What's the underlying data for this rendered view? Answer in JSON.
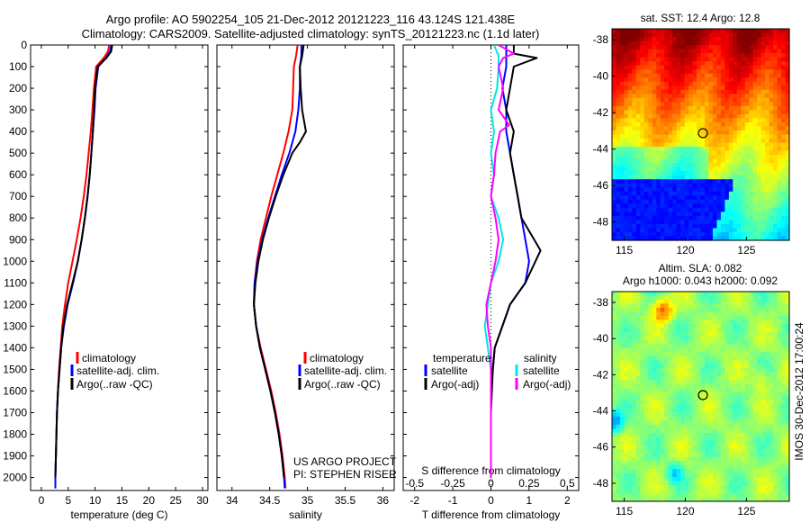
{
  "header": {
    "title_line1": "Argo profile: AO 5902254_105 21-Dec-2012 20121223_116 43.124S 121.438E",
    "title_line2": "Climatology: CARS2009. Satellite-adjusted climatology: synTS_20121223.nc (1.1d later)"
  },
  "colors": {
    "climatology": "#ff0000",
    "satellite": "#0000ff",
    "argo": "#000000",
    "satellite_s": "#00e5e5",
    "argo_s": "#ff00ff"
  },
  "credits": {
    "line1": "US ARGO PROJECT",
    "line2": "PI: STEPHEN RISER"
  },
  "timestamp": "IMOS 30-Dec-2012 17:00:24",
  "legend_profiles": [
    "climatology",
    "satellite-adj. clim.",
    "Argo(..raw -QC)"
  ],
  "legend_diff": {
    "temperature_heading": "temperature",
    "salinity_heading": "salinity",
    "satellite": "satellite",
    "argo": "Argo(-adj)"
  },
  "chart_data": [
    {
      "type": "line",
      "id": "temperature",
      "xlabel": "temperature (deg C)",
      "ylabel": "",
      "xlim": [
        -2,
        31
      ],
      "ylim": [
        2060,
        0
      ],
      "xticks": [
        0,
        5,
        10,
        15,
        20,
        25,
        30
      ],
      "yticks": [
        0,
        100,
        200,
        300,
        400,
        500,
        600,
        700,
        800,
        900,
        1000,
        1100,
        1200,
        1300,
        1400,
        1500,
        1600,
        1700,
        1800,
        1900,
        2000
      ],
      "series": [
        {
          "name": "climatology",
          "color": "#ff0000",
          "points": [
            [
              12.6,
              0
            ],
            [
              12.4,
              30
            ],
            [
              11.6,
              60
            ],
            [
              10.2,
              100
            ],
            [
              9.8,
              200
            ],
            [
              9.5,
              300
            ],
            [
              9.2,
              400
            ],
            [
              8.8,
              500
            ],
            [
              8.4,
              600
            ],
            [
              7.9,
              700
            ],
            [
              7.3,
              800
            ],
            [
              6.6,
              900
            ],
            [
              5.8,
              1000
            ],
            [
              5.0,
              1100
            ],
            [
              4.4,
              1200
            ],
            [
              3.9,
              1300
            ],
            [
              3.6,
              1400
            ],
            [
              3.3,
              1500
            ],
            [
              3.1,
              1600
            ],
            [
              2.9,
              1700
            ],
            [
              2.8,
              1800
            ],
            [
              2.7,
              1900
            ],
            [
              2.6,
              2000
            ],
            [
              2.6,
              2050
            ]
          ]
        },
        {
          "name": "satellite-adj. clim.",
          "color": "#0000ff",
          "points": [
            [
              13.0,
              0
            ],
            [
              12.8,
              30
            ],
            [
              12.0,
              60
            ],
            [
              10.6,
              100
            ],
            [
              10.1,
              200
            ],
            [
              9.9,
              300
            ],
            [
              9.6,
              400
            ],
            [
              9.3,
              500
            ],
            [
              9.0,
              600
            ],
            [
              8.6,
              700
            ],
            [
              8.1,
              800
            ],
            [
              7.5,
              900
            ],
            [
              6.8,
              1000
            ],
            [
              5.9,
              1100
            ],
            [
              4.9,
              1200
            ],
            [
              4.2,
              1300
            ],
            [
              3.7,
              1400
            ],
            [
              3.4,
              1500
            ],
            [
              3.1,
              1600
            ],
            [
              2.9,
              1700
            ],
            [
              2.8,
              1800
            ],
            [
              2.7,
              1900
            ],
            [
              2.6,
              2000
            ],
            [
              2.6,
              2050
            ]
          ]
        },
        {
          "name": "Argo(..raw -QC)",
          "color": "#000000",
          "points": [
            [
              13.2,
              0
            ],
            [
              13.0,
              30
            ],
            [
              12.1,
              60
            ],
            [
              10.5,
              100
            ],
            [
              10.0,
              200
            ],
            [
              9.8,
              300
            ],
            [
              9.6,
              400
            ],
            [
              9.3,
              500
            ],
            [
              9.0,
              600
            ],
            [
              8.6,
              700
            ],
            [
              8.1,
              800
            ],
            [
              7.5,
              900
            ],
            [
              6.8,
              1000
            ],
            [
              5.8,
              1100
            ],
            [
              4.8,
              1200
            ],
            [
              4.1,
              1300
            ],
            [
              3.7,
              1400
            ],
            [
              3.4,
              1500
            ],
            [
              3.1,
              1600
            ],
            [
              2.9,
              1700
            ],
            [
              2.8,
              1800
            ],
            [
              2.7,
              1900
            ],
            [
              2.6,
              2000
            ]
          ]
        }
      ]
    },
    {
      "type": "line",
      "id": "salinity",
      "xlabel": "salinity",
      "ylabel": "",
      "xlim": [
        33.8,
        36.15
      ],
      "ylim": [
        2060,
        0
      ],
      "xticks": [
        34,
        34.5,
        35,
        35.5,
        36
      ],
      "series": [
        {
          "name": "climatology",
          "color": "#ff0000",
          "points": [
            [
              34.87,
              0
            ],
            [
              34.85,
              50
            ],
            [
              34.82,
              100
            ],
            [
              34.81,
              200
            ],
            [
              34.8,
              300
            ],
            [
              34.75,
              400
            ],
            [
              34.68,
              500
            ],
            [
              34.6,
              600
            ],
            [
              34.52,
              700
            ],
            [
              34.45,
              800
            ],
            [
              34.38,
              900
            ],
            [
              34.33,
              1000
            ],
            [
              34.3,
              1100
            ],
            [
              34.29,
              1200
            ],
            [
              34.32,
              1300
            ],
            [
              34.38,
              1400
            ],
            [
              34.45,
              1500
            ],
            [
              34.52,
              1600
            ],
            [
              34.58,
              1700
            ],
            [
              34.63,
              1800
            ],
            [
              34.67,
              1900
            ],
            [
              34.7,
              2000
            ],
            [
              34.71,
              2050
            ]
          ]
        },
        {
          "name": "satellite-adj. clim.",
          "color": "#0000ff",
          "points": [
            [
              34.92,
              0
            ],
            [
              34.92,
              50
            ],
            [
              34.9,
              100
            ],
            [
              34.9,
              200
            ],
            [
              34.88,
              300
            ],
            [
              34.84,
              400
            ],
            [
              34.76,
              500
            ],
            [
              34.66,
              600
            ],
            [
              34.57,
              700
            ],
            [
              34.48,
              800
            ],
            [
              34.4,
              900
            ],
            [
              34.34,
              1000
            ],
            [
              34.3,
              1100
            ],
            [
              34.29,
              1200
            ],
            [
              34.32,
              1300
            ],
            [
              34.37,
              1400
            ],
            [
              34.44,
              1500
            ],
            [
              34.51,
              1600
            ],
            [
              34.57,
              1700
            ],
            [
              34.62,
              1800
            ],
            [
              34.66,
              1900
            ],
            [
              34.69,
              2000
            ],
            [
              34.7,
              2050
            ]
          ]
        },
        {
          "name": "Argo(..raw -QC)",
          "color": "#000000",
          "points": [
            [
              34.95,
              0
            ],
            [
              34.93,
              50
            ],
            [
              34.9,
              100
            ],
            [
              34.91,
              200
            ],
            [
              34.93,
              300
            ],
            [
              34.98,
              400
            ],
            [
              34.9,
              450
            ],
            [
              34.8,
              500
            ],
            [
              34.68,
              600
            ],
            [
              34.58,
              700
            ],
            [
              34.49,
              800
            ],
            [
              34.41,
              900
            ],
            [
              34.35,
              1000
            ],
            [
              34.31,
              1100
            ],
            [
              34.29,
              1200
            ],
            [
              34.32,
              1300
            ],
            [
              34.37,
              1400
            ],
            [
              34.44,
              1500
            ],
            [
              34.51,
              1600
            ],
            [
              34.57,
              1700
            ],
            [
              34.62,
              1800
            ],
            [
              34.66,
              1900
            ],
            [
              34.69,
              2000
            ]
          ]
        }
      ]
    },
    {
      "type": "line",
      "id": "differences",
      "xlabel": "T difference from climatology",
      "xlabel_top": "S difference from climatology",
      "ylabel": "",
      "xlim": [
        -2.3,
        2.3
      ],
      "ylim": [
        2060,
        0
      ],
      "xticks": [
        -2,
        -1,
        0,
        1,
        2
      ],
      "xticklabels": [
        "-2",
        "-1",
        "0",
        "1",
        "2"
      ],
      "xticks_s": [
        -0.5,
        -0.25,
        0,
        0.25,
        0.5
      ],
      "xticklabels_s": [
        "-0.5",
        "-0.25",
        "0",
        "0.25",
        "0.5"
      ],
      "series": [
        {
          "name": "temperature satellite",
          "color": "#0000ff",
          "points": [
            [
              0.4,
              0
            ],
            [
              0.4,
              50
            ],
            [
              0.4,
              100
            ],
            [
              0.3,
              200
            ],
            [
              0.4,
              300
            ],
            [
              0.4,
              400
            ],
            [
              0.5,
              500
            ],
            [
              0.6,
              600
            ],
            [
              0.7,
              700
            ],
            [
              0.8,
              800
            ],
            [
              0.9,
              900
            ],
            [
              1.0,
              1000
            ],
            [
              0.9,
              1100
            ],
            [
              0.5,
              1200
            ],
            [
              0.3,
              1300
            ],
            [
              0.1,
              1400
            ],
            [
              0.05,
              1500
            ],
            [
              0.0,
              1600
            ],
            [
              0.0,
              1800
            ],
            [
              0.0,
              2000
            ]
          ]
        },
        {
          "name": "temperature Argo(-adj)",
          "color": "#000000",
          "points": [
            [
              0.6,
              0
            ],
            [
              0.6,
              40
            ],
            [
              1.2,
              60
            ],
            [
              0.6,
              100
            ],
            [
              0.5,
              200
            ],
            [
              0.4,
              300
            ],
            [
              0.6,
              400
            ],
            [
              0.5,
              500
            ],
            [
              0.6,
              600
            ],
            [
              0.7,
              700
            ],
            [
              0.8,
              800
            ],
            [
              1.3,
              950
            ],
            [
              0.9,
              1100
            ],
            [
              0.5,
              1200
            ],
            [
              0.3,
              1300
            ],
            [
              0.1,
              1400
            ],
            [
              0.05,
              1500
            ],
            [
              0.0,
              1700
            ],
            [
              0.0,
              2000
            ]
          ]
        },
        {
          "name": "salinity satellite",
          "color": "#00e5e5",
          "points": [
            [
              0.02,
              0
            ],
            [
              0.05,
              50
            ],
            [
              0.05,
              100
            ],
            [
              0.04,
              200
            ],
            [
              0.0,
              300
            ],
            [
              0.02,
              400
            ],
            [
              0.0,
              500
            ],
            [
              0.02,
              600
            ],
            [
              0.0,
              700
            ],
            [
              0.05,
              800
            ],
            [
              0.08,
              900
            ],
            [
              0.05,
              1000
            ],
            [
              0.0,
              1100
            ],
            [
              -0.02,
              1200
            ],
            [
              -0.04,
              1300
            ],
            [
              -0.02,
              1400
            ],
            [
              0.0,
              1500
            ],
            [
              0.0,
              1700
            ],
            [
              0.0,
              2000
            ]
          ]
        },
        {
          "name": "salinity Argo(-adj)",
          "color": "#ff00ff",
          "points": [
            [
              0.05,
              0
            ],
            [
              0.15,
              40
            ],
            [
              0.08,
              60
            ],
            [
              0.05,
              100
            ],
            [
              0.08,
              200
            ],
            [
              0.05,
              300
            ],
            [
              0.12,
              370
            ],
            [
              0.06,
              400
            ],
            [
              0.03,
              500
            ],
            [
              0.02,
              600
            ],
            [
              0.0,
              700
            ],
            [
              0.03,
              800
            ],
            [
              0.05,
              900
            ],
            [
              0.03,
              1000
            ],
            [
              0.0,
              1100
            ],
            [
              -0.03,
              1200
            ],
            [
              -0.02,
              1300
            ],
            [
              0.0,
              1400
            ],
            [
              0.0,
              1600
            ],
            [
              0.0,
              2000
            ]
          ]
        }
      ]
    },
    {
      "type": "heatmap",
      "id": "sst_map",
      "title": "sat. SST: 12.4 Argo: 12.8",
      "xlim": [
        114,
        128.5
      ],
      "ylim": [
        -49,
        -37.4
      ],
      "xticks": [
        115,
        120,
        125
      ],
      "yticks": [
        -38,
        -40,
        -42,
        -44,
        -46,
        -48
      ],
      "marker": {
        "lon": 121.438,
        "lat": -43.124
      }
    },
    {
      "type": "heatmap",
      "id": "sla_map",
      "title": "Altim. SLA: 0.082",
      "subtitle": "Argo h1000: 0.043 h2000: 0.092",
      "xlim": [
        114,
        128.5
      ],
      "ylim": [
        -49,
        -37.4
      ],
      "xticks": [
        115,
        120,
        125
      ],
      "yticks": [
        -38,
        -40,
        -42,
        -44,
        -46,
        -48
      ],
      "marker": {
        "lon": 121.438,
        "lat": -43.124
      }
    }
  ]
}
